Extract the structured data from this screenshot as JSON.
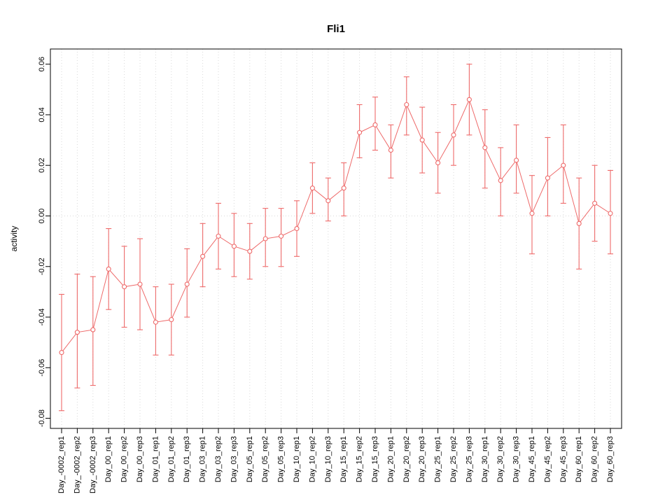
{
  "chart": {
    "title": "Fli1",
    "ylabel": "activity"
  },
  "chart_data": {
    "type": "line",
    "title": "Fli1",
    "xlabel": "",
    "ylabel": "activity",
    "ylim": [
      -0.084,
      0.066
    ],
    "yticks": [
      -0.08,
      -0.06,
      -0.04,
      -0.02,
      0.0,
      0.02,
      0.04,
      0.06
    ],
    "grid": "dotted vertical line at each category; dotted horizontal line at y=0",
    "legend": "none",
    "point_style": "open-circle with error bars, connected by line",
    "color": "#ee6a6a",
    "categories": [
      "Day_-0002_rep1",
      "Day_-0002_rep2",
      "Day_-0002_rep3",
      "Day_00_rep1",
      "Day_00_rep2",
      "Day_00_rep3",
      "Day_01_rep1",
      "Day_01_rep2",
      "Day_01_rep3",
      "Day_03_rep1",
      "Day_03_rep2",
      "Day_03_rep3",
      "Day_05_rep1",
      "Day_05_rep2",
      "Day_05_rep3",
      "Day_10_rep1",
      "Day_10_rep2",
      "Day_10_rep3",
      "Day_15_rep1",
      "Day_15_rep2",
      "Day_15_rep3",
      "Day_20_rep1",
      "Day_20_rep2",
      "Day_20_rep3",
      "Day_25_rep1",
      "Day_25_rep2",
      "Day_25_rep3",
      "Day_30_rep1",
      "Day_30_rep2",
      "Day_30_rep3",
      "Day_45_rep1",
      "Day_45_rep2",
      "Day_45_rep3",
      "Day_60_rep1",
      "Day_60_rep2",
      "Day_60_rep3"
    ],
    "series": [
      {
        "name": "activity",
        "values": [
          -0.054,
          -0.046,
          -0.045,
          -0.021,
          -0.028,
          -0.027,
          -0.042,
          -0.041,
          -0.027,
          -0.016,
          -0.008,
          -0.012,
          -0.014,
          -0.009,
          -0.008,
          -0.005,
          0.011,
          0.006,
          0.011,
          0.033,
          0.036,
          0.026,
          0.044,
          0.03,
          0.021,
          0.032,
          0.046,
          0.027,
          0.014,
          0.022,
          0.001,
          0.015,
          0.02,
          -0.003,
          0.005,
          0.001
        ],
        "lower": [
          -0.077,
          -0.068,
          -0.067,
          -0.037,
          -0.044,
          -0.045,
          -0.055,
          -0.055,
          -0.04,
          -0.028,
          -0.021,
          -0.024,
          -0.025,
          -0.02,
          -0.02,
          -0.016,
          0.001,
          -0.002,
          0.0,
          0.023,
          0.026,
          0.015,
          0.032,
          0.017,
          0.009,
          0.02,
          0.032,
          0.011,
          0.0,
          0.009,
          -0.015,
          0.0,
          0.005,
          -0.021,
          -0.01,
          -0.015
        ],
        "upper": [
          -0.031,
          -0.023,
          -0.024,
          -0.005,
          -0.012,
          -0.009,
          -0.028,
          -0.027,
          -0.013,
          -0.003,
          0.005,
          0.001,
          -0.003,
          0.003,
          0.003,
          0.006,
          0.021,
          0.015,
          0.021,
          0.044,
          0.047,
          0.036,
          0.055,
          0.043,
          0.033,
          0.044,
          0.06,
          0.042,
          0.027,
          0.036,
          0.016,
          0.031,
          0.036,
          0.015,
          0.02,
          0.018
        ]
      }
    ]
  }
}
